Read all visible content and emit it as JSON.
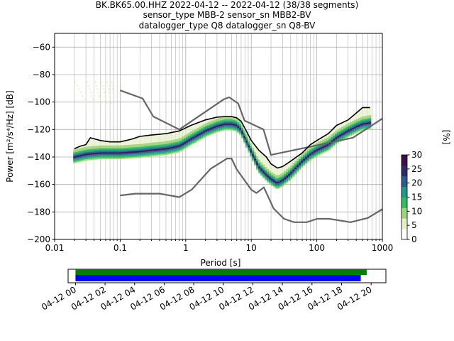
{
  "chart_data": {
    "type": "line",
    "title": [
      "BK.BK65.00.HHZ   2022-04-12 -- 2022-04-12  (38/38 segments)",
      "sensor_type MBB-2 sensor_sn MBB2-BV",
      "datalogger_type Q8 datalogger_sn Q8-BV"
    ],
    "xlabel": "Period [s]",
    "ylabel": "Power [m²/s⁴/Hz] [dB]",
    "xscale": "log",
    "xlim": [
      0.01,
      1000
    ],
    "ylim": [
      -200,
      -50
    ],
    "xticks": [
      {
        "value": 0.01,
        "label": "0.01"
      },
      {
        "value": 0.1,
        "label": "0.1"
      },
      {
        "value": 1,
        "label": "1"
      },
      {
        "value": 10,
        "label": "10"
      },
      {
        "value": 100,
        "label": "100"
      },
      {
        "value": 1000,
        "label": "1000"
      }
    ],
    "yticks": [
      -200,
      -180,
      -160,
      -140,
      -120,
      -100,
      -80,
      -60
    ],
    "grid": true,
    "colorbar": {
      "label": "[%]",
      "min": 0,
      "max": 30,
      "ticks": [
        0,
        5,
        10,
        15,
        20,
        25,
        30
      ],
      "colors": [
        "#ffffff",
        "#e6f0c8",
        "#9ed67a",
        "#2fbf5a",
        "#1a9a8a",
        "#2a5c8f",
        "#2c2a6e",
        "#3b0f4f"
      ]
    },
    "series": [
      {
        "name": "NHNM",
        "color": "#666666",
        "x": [
          0.1,
          0.22,
          0.32,
          0.8,
          3.8,
          4.6,
          6.3,
          7.9,
          15.4,
          20,
          354.8,
          1000
        ],
        "y": [
          -91.5,
          -97.4,
          -110.5,
          -120,
          -98,
          -96.5,
          -101,
          -113.5,
          -120,
          -138.5,
          -126,
          -112
        ]
      },
      {
        "name": "NLNM",
        "color": "#666666",
        "x": [
          0.1,
          0.17,
          0.4,
          0.8,
          1.24,
          2.4,
          4.3,
          5,
          6,
          10,
          12,
          15.6,
          21.9,
          31.6,
          45,
          70,
          101,
          154,
          328,
          600,
          1000
        ],
        "y": [
          -168,
          -166.7,
          -166.7,
          -169.2,
          -163.7,
          -148.6,
          -141.1,
          -141.1,
          -149,
          -163.8,
          -166.2,
          -162.1,
          -177.5,
          -185,
          -187.5,
          -187.5,
          -185,
          -185,
          -187.5,
          -184.4,
          -178
        ]
      },
      {
        "name": "max",
        "color": "#000000",
        "x": [
          0.02,
          0.025,
          0.03,
          0.035,
          0.05,
          0.07,
          0.1,
          0.15,
          0.2,
          0.3,
          0.5,
          0.8,
          1.2,
          2,
          3,
          4,
          5,
          6,
          7,
          8,
          10,
          13,
          17,
          20,
          25,
          30,
          40,
          60,
          80,
          100,
          150,
          200,
          300,
          400,
          500,
          650
        ],
        "y": [
          -134,
          -132,
          -131,
          -126,
          -128,
          -129,
          -129,
          -127,
          -125,
          -124,
          -123,
          -121,
          -117,
          -113,
          -111,
          -110.5,
          -110.5,
          -111.5,
          -114,
          -119,
          -128,
          -135,
          -140,
          -145,
          -148,
          -147,
          -143,
          -137,
          -131,
          -128,
          -123,
          -117,
          -113,
          -108,
          -104,
          -104
        ]
      },
      {
        "name": "mode",
        "color": "#3b0f4f",
        "x": [
          0.02,
          0.03,
          0.05,
          0.1,
          0.2,
          0.3,
          0.5,
          0.8,
          1.2,
          2,
          3,
          4,
          5,
          6,
          7,
          8,
          10,
          13,
          17,
          20,
          25,
          30,
          40,
          60,
          80,
          100,
          150,
          200,
          300,
          400,
          500,
          650
        ],
        "y": [
          -140,
          -138,
          -137,
          -137,
          -136,
          -135,
          -134,
          -132,
          -127,
          -121,
          -117.5,
          -116,
          -116,
          -117,
          -120,
          -126,
          -136,
          -147,
          -153,
          -156,
          -159,
          -157,
          -152,
          -143,
          -138,
          -135,
          -131,
          -126,
          -121,
          -118,
          -116,
          -115
        ]
      }
    ],
    "time_bar": {
      "ticks": [
        "04-12 00",
        "04-12 02",
        "04-12 04",
        "04-12 06",
        "04-12 08",
        "04-12 10",
        "04-12 12",
        "04-12 14",
        "04-12 16",
        "04-12 18",
        "04-12 20"
      ],
      "range_hours": [
        -0.5,
        21
      ],
      "green_hours": [
        0,
        19.7
      ],
      "blue_hours": [
        0,
        19.3
      ],
      "green_color": "#008000",
      "blue_color": "#0000ff"
    }
  }
}
